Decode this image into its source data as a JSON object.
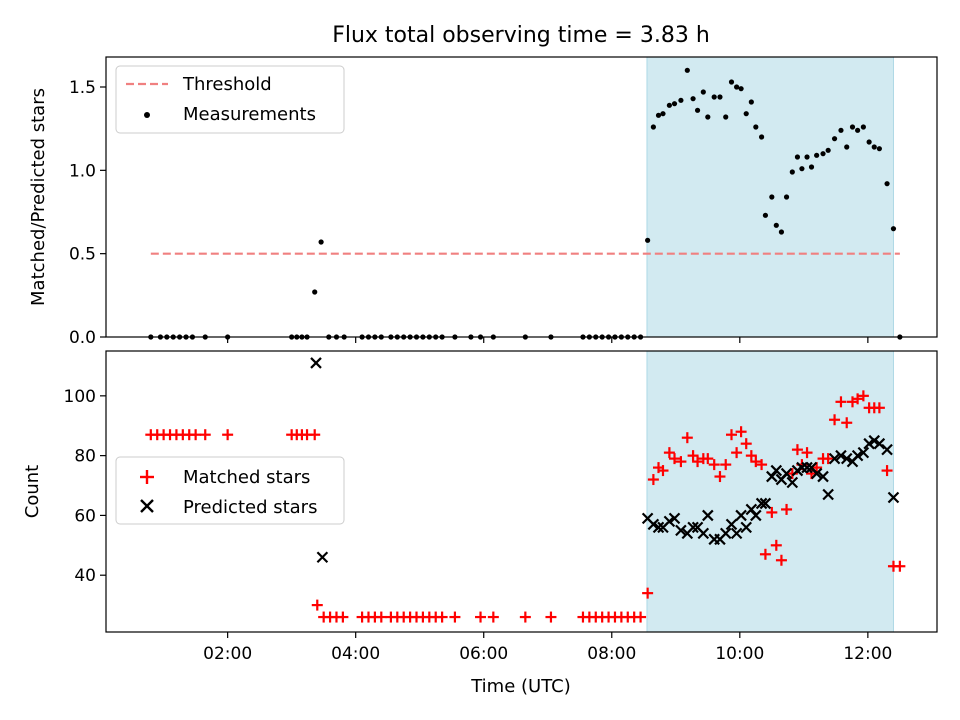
{
  "figure": {
    "title": "Flux total observing time = 3.83 h",
    "xlabel": "Time (UTC)",
    "xlim_hours": [
      0.1,
      13.08
    ],
    "x_ticks": [
      "02:00",
      "04:00",
      "06:00",
      "08:00",
      "10:00",
      "12:00"
    ],
    "x_tick_hours": [
      2,
      4,
      6,
      8,
      10,
      12
    ],
    "shaded_span_hours": [
      8.55,
      12.4
    ],
    "shade_color": "#add8e6",
    "threshold_color": "#f08080"
  },
  "chart_data": [
    {
      "type": "scatter",
      "panel": "top",
      "ylabel": "Matched/Predicted stars",
      "ylim": [
        0,
        1.68
      ],
      "y_ticks": [
        "0.0",
        "0.5",
        "1.0",
        "1.5"
      ],
      "y_tick_values": [
        0,
        0.5,
        1.0,
        1.5
      ],
      "legend_position": "upper left",
      "threshold": {
        "name": "Threshold",
        "value": 0.5,
        "x_range": [
          0.8,
          12.5
        ],
        "style": "dashed"
      },
      "series": [
        {
          "name": "Measurements",
          "color": "#000000",
          "marker": "dot",
          "points": [
            [
              0.8,
              0
            ],
            [
              0.95,
              0
            ],
            [
              1.05,
              0
            ],
            [
              1.15,
              0
            ],
            [
              1.25,
              0
            ],
            [
              1.35,
              0
            ],
            [
              1.45,
              0
            ],
            [
              1.65,
              0
            ],
            [
              2.0,
              0
            ],
            [
              3.0,
              0
            ],
            [
              3.08,
              0
            ],
            [
              3.16,
              0
            ],
            [
              3.24,
              0
            ],
            [
              3.36,
              0.27
            ],
            [
              3.46,
              0.57
            ],
            [
              3.58,
              0
            ],
            [
              3.7,
              0
            ],
            [
              3.82,
              0
            ],
            [
              4.1,
              0
            ],
            [
              4.2,
              0
            ],
            [
              4.3,
              0
            ],
            [
              4.4,
              0
            ],
            [
              4.55,
              0
            ],
            [
              4.65,
              0
            ],
            [
              4.75,
              0
            ],
            [
              4.85,
              0
            ],
            [
              4.95,
              0
            ],
            [
              5.05,
              0
            ],
            [
              5.15,
              0
            ],
            [
              5.25,
              0
            ],
            [
              5.35,
              0
            ],
            [
              5.55,
              0
            ],
            [
              5.8,
              0
            ],
            [
              5.95,
              0
            ],
            [
              6.15,
              0
            ],
            [
              6.65,
              0
            ],
            [
              7.05,
              0
            ],
            [
              7.55,
              0
            ],
            [
              7.65,
              0
            ],
            [
              7.75,
              0
            ],
            [
              7.85,
              0
            ],
            [
              7.95,
              0
            ],
            [
              8.05,
              0
            ],
            [
              8.15,
              0
            ],
            [
              8.25,
              0
            ],
            [
              8.35,
              0
            ],
            [
              8.45,
              0
            ],
            [
              8.56,
              0.58
            ],
            [
              8.65,
              1.26
            ],
            [
              8.73,
              1.33
            ],
            [
              8.8,
              1.34
            ],
            [
              8.9,
              1.39
            ],
            [
              8.98,
              1.4
            ],
            [
              9.08,
              1.42
            ],
            [
              9.18,
              1.6
            ],
            [
              9.27,
              1.43
            ],
            [
              9.34,
              1.36
            ],
            [
              9.43,
              1.47
            ],
            [
              9.5,
              1.32
            ],
            [
              9.6,
              1.44
            ],
            [
              9.69,
              1.44
            ],
            [
              9.78,
              1.32
            ],
            [
              9.87,
              1.53
            ],
            [
              9.95,
              1.5
            ],
            [
              10.02,
              1.49
            ],
            [
              10.1,
              1.34
            ],
            [
              10.18,
              1.41
            ],
            [
              10.25,
              1.26
            ],
            [
              10.34,
              1.2
            ],
            [
              10.4,
              0.73
            ],
            [
              10.5,
              0.84
            ],
            [
              10.57,
              0.67
            ],
            [
              10.65,
              0.63
            ],
            [
              10.73,
              0.84
            ],
            [
              10.82,
              0.99
            ],
            [
              10.9,
              1.08
            ],
            [
              10.97,
              1.01
            ],
            [
              11.05,
              1.08
            ],
            [
              11.12,
              1.02
            ],
            [
              11.2,
              1.09
            ],
            [
              11.3,
              1.1
            ],
            [
              11.38,
              1.12
            ],
            [
              11.48,
              1.19
            ],
            [
              11.58,
              1.24
            ],
            [
              11.67,
              1.14
            ],
            [
              11.76,
              1.26
            ],
            [
              11.84,
              1.24
            ],
            [
              11.93,
              1.26
            ],
            [
              12.02,
              1.17
            ],
            [
              12.1,
              1.14
            ],
            [
              12.18,
              1.13
            ],
            [
              12.3,
              0.92
            ],
            [
              12.4,
              0.65
            ],
            [
              12.5,
              0
            ]
          ]
        }
      ]
    },
    {
      "type": "scatter",
      "panel": "bottom",
      "ylabel": "Count",
      "ylim": [
        21,
        115
      ],
      "y_ticks": [
        "40",
        "60",
        "80",
        "100"
      ],
      "y_tick_values": [
        40,
        60,
        80,
        100
      ],
      "legend_position": "center left",
      "series": [
        {
          "name": "Matched stars",
          "color": "#ff0000",
          "marker": "plus",
          "points": [
            [
              0.8,
              87
            ],
            [
              0.9,
              87
            ],
            [
              1.0,
              87
            ],
            [
              1.1,
              87
            ],
            [
              1.2,
              87
            ],
            [
              1.3,
              87
            ],
            [
              1.4,
              87
            ],
            [
              1.5,
              87
            ],
            [
              1.65,
              87
            ],
            [
              2.0,
              87
            ],
            [
              3.0,
              87
            ],
            [
              3.08,
              87
            ],
            [
              3.16,
              87
            ],
            [
              3.24,
              87
            ],
            [
              3.36,
              87
            ],
            [
              3.4,
              30
            ],
            [
              3.5,
              26
            ],
            [
              3.6,
              26
            ],
            [
              3.7,
              26
            ],
            [
              3.8,
              26
            ],
            [
              4.1,
              26
            ],
            [
              4.2,
              26
            ],
            [
              4.3,
              26
            ],
            [
              4.4,
              26
            ],
            [
              4.55,
              26
            ],
            [
              4.65,
              26
            ],
            [
              4.75,
              26
            ],
            [
              4.85,
              26
            ],
            [
              4.95,
              26
            ],
            [
              5.05,
              26
            ],
            [
              5.15,
              26
            ],
            [
              5.25,
              26
            ],
            [
              5.35,
              26
            ],
            [
              5.55,
              26
            ],
            [
              5.95,
              26
            ],
            [
              6.15,
              26
            ],
            [
              6.65,
              26
            ],
            [
              7.05,
              26
            ],
            [
              7.55,
              26
            ],
            [
              7.65,
              26
            ],
            [
              7.75,
              26
            ],
            [
              7.85,
              26
            ],
            [
              7.95,
              26
            ],
            [
              8.05,
              26
            ],
            [
              8.15,
              26
            ],
            [
              8.25,
              26
            ],
            [
              8.35,
              26
            ],
            [
              8.45,
              26
            ],
            [
              8.56,
              34
            ],
            [
              8.65,
              72
            ],
            [
              8.73,
              76
            ],
            [
              8.8,
              75
            ],
            [
              8.9,
              81
            ],
            [
              8.98,
              79
            ],
            [
              9.08,
              78
            ],
            [
              9.18,
              86
            ],
            [
              9.27,
              80
            ],
            [
              9.34,
              78
            ],
            [
              9.43,
              79
            ],
            [
              9.5,
              79
            ],
            [
              9.6,
              77
            ],
            [
              9.69,
              73
            ],
            [
              9.78,
              77
            ],
            [
              9.87,
              87
            ],
            [
              9.95,
              81
            ],
            [
              10.02,
              88
            ],
            [
              10.1,
              84
            ],
            [
              10.18,
              80
            ],
            [
              10.25,
              78
            ],
            [
              10.34,
              77
            ],
            [
              10.4,
              47
            ],
            [
              10.5,
              61
            ],
            [
              10.57,
              50
            ],
            [
              10.65,
              45
            ],
            [
              10.73,
              62
            ],
            [
              10.82,
              74
            ],
            [
              10.9,
              82
            ],
            [
              10.97,
              77
            ],
            [
              11.05,
              81
            ],
            [
              11.12,
              74
            ],
            [
              11.2,
              76
            ],
            [
              11.3,
              79
            ],
            [
              11.38,
              79
            ],
            [
              11.48,
              92
            ],
            [
              11.58,
              98
            ],
            [
              11.67,
              91
            ],
            [
              11.76,
              98
            ],
            [
              11.84,
              99
            ],
            [
              11.93,
              100
            ],
            [
              12.02,
              96
            ],
            [
              12.1,
              96
            ],
            [
              12.18,
              96
            ],
            [
              12.3,
              75
            ],
            [
              12.4,
              43
            ],
            [
              12.5,
              43
            ]
          ]
        },
        {
          "name": "Predicted stars",
          "color": "#000000",
          "marker": "x",
          "points": [
            [
              3.38,
              111
            ],
            [
              3.48,
              46
            ],
            [
              8.56,
              59
            ],
            [
              8.65,
              57
            ],
            [
              8.73,
              56
            ],
            [
              8.8,
              56
            ],
            [
              8.9,
              58
            ],
            [
              8.98,
              59
            ],
            [
              9.08,
              55
            ],
            [
              9.18,
              54
            ],
            [
              9.27,
              56
            ],
            [
              9.34,
              56
            ],
            [
              9.43,
              54
            ],
            [
              9.5,
              60
            ],
            [
              9.6,
              52
            ],
            [
              9.69,
              52
            ],
            [
              9.78,
              54
            ],
            [
              9.87,
              57
            ],
            [
              9.95,
              54
            ],
            [
              10.02,
              60
            ],
            [
              10.1,
              56
            ],
            [
              10.18,
              62
            ],
            [
              10.25,
              60
            ],
            [
              10.34,
              64
            ],
            [
              10.4,
              64
            ],
            [
              10.5,
              73
            ],
            [
              10.57,
              75
            ],
            [
              10.65,
              72
            ],
            [
              10.73,
              74
            ],
            [
              10.82,
              71
            ],
            [
              10.9,
              75
            ],
            [
              10.97,
              76
            ],
            [
              11.05,
              76
            ],
            [
              11.12,
              76
            ],
            [
              11.2,
              74
            ],
            [
              11.3,
              73
            ],
            [
              11.38,
              67
            ],
            [
              11.48,
              79
            ],
            [
              11.58,
              80
            ],
            [
              11.67,
              79
            ],
            [
              11.76,
              78
            ],
            [
              11.84,
              80
            ],
            [
              11.93,
              81
            ],
            [
              12.02,
              84
            ],
            [
              12.1,
              85
            ],
            [
              12.18,
              84
            ],
            [
              12.3,
              82
            ],
            [
              12.4,
              66
            ]
          ]
        }
      ]
    }
  ]
}
